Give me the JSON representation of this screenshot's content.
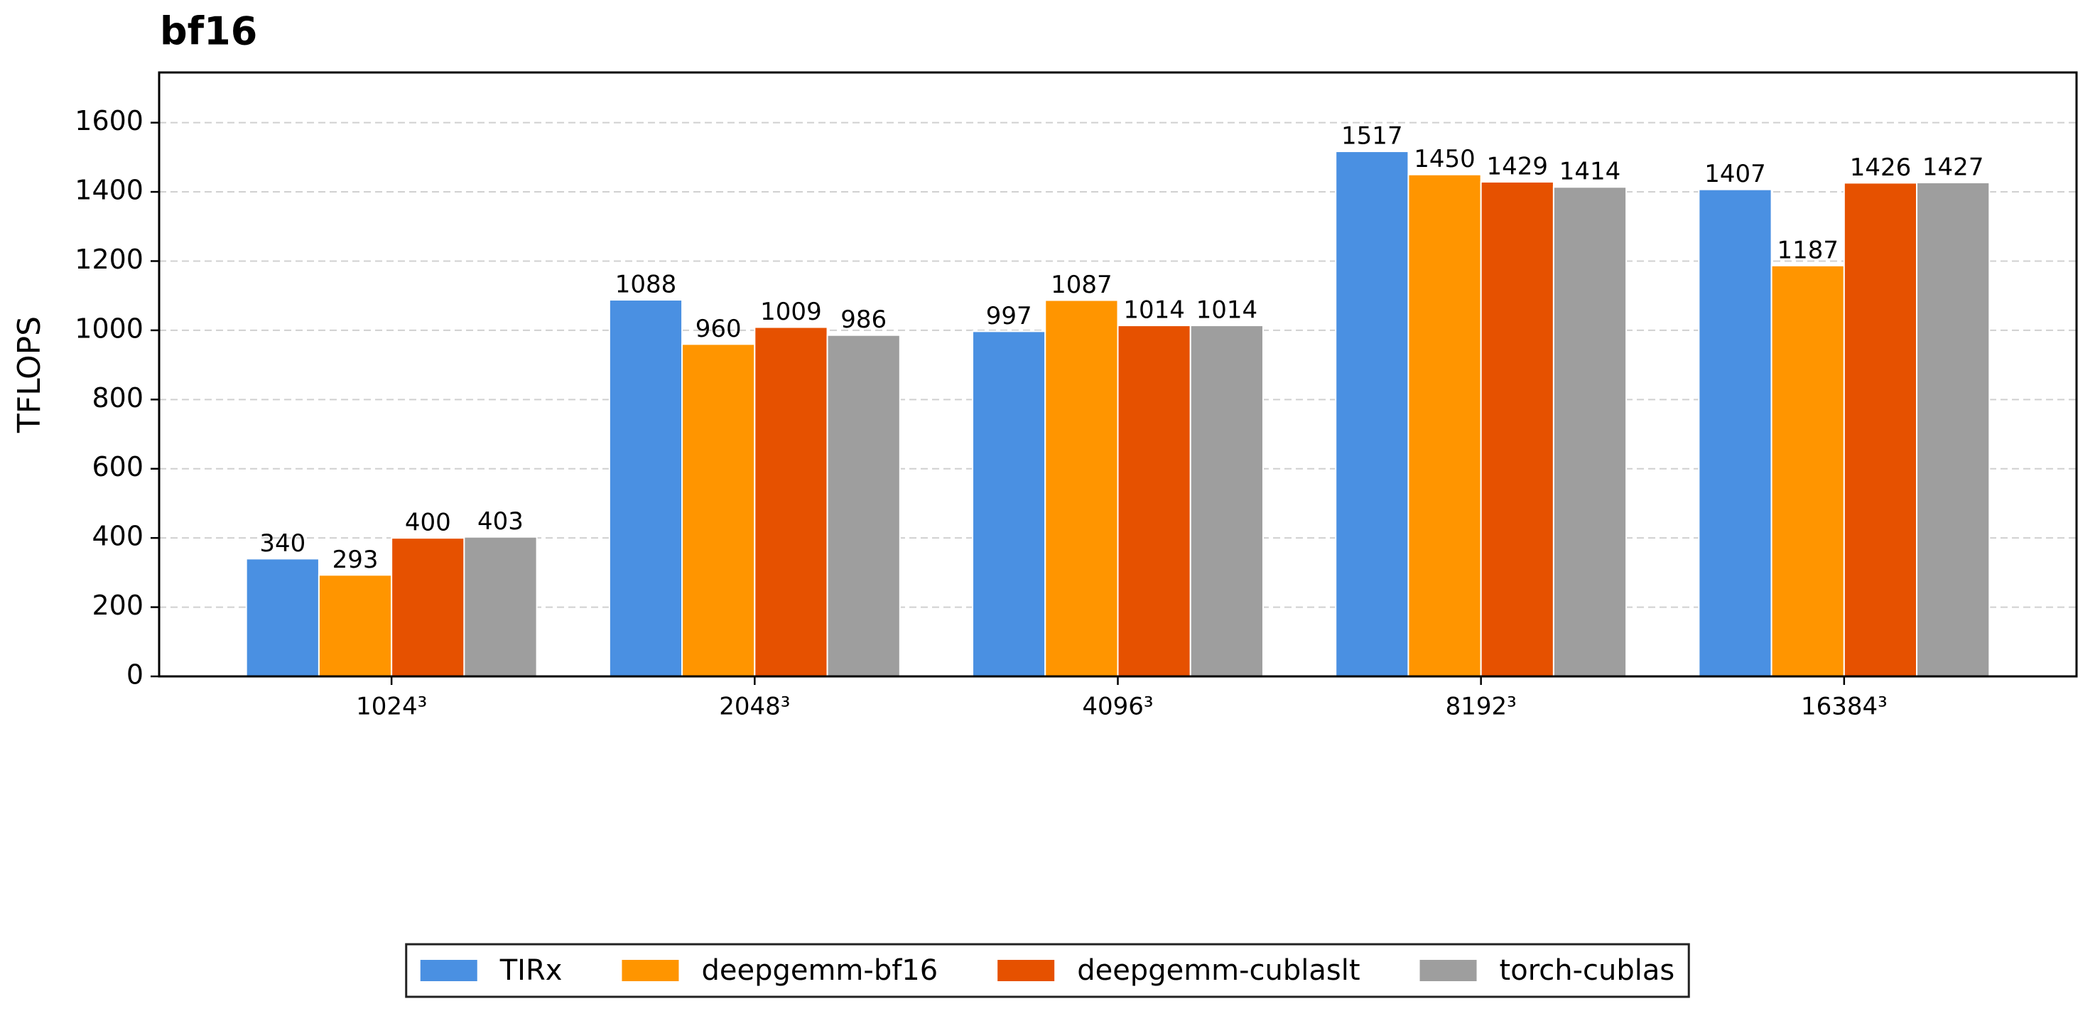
{
  "chart_data": {
    "type": "bar",
    "title": "bf16",
    "y_label": "TFLOPS",
    "categories": [
      "1024³",
      "2048³",
      "4096³",
      "8192³",
      "16384³"
    ],
    "series": [
      {
        "name": "TIRx",
        "color": "#4a90e2",
        "values": [
          340,
          1088,
          997,
          1517,
          1407
        ]
      },
      {
        "name": "deepgemm-bf16",
        "color": "#ff9500",
        "values": [
          293,
          960,
          1087,
          1450,
          1187
        ]
      },
      {
        "name": "deepgemm-cublaslt",
        "color": "#e65100",
        "values": [
          400,
          1009,
          1014,
          1429,
          1426
        ]
      },
      {
        "name": "torch-cublas",
        "color": "#9e9e9e",
        "values": [
          403,
          986,
          1014,
          1414,
          1427
        ]
      }
    ],
    "ylim": [
      0,
      1745
    ],
    "yticks": [
      0,
      200,
      400,
      600,
      800,
      1000,
      1200,
      1400,
      1600
    ],
    "grid": true,
    "legend": "lower center"
  }
}
